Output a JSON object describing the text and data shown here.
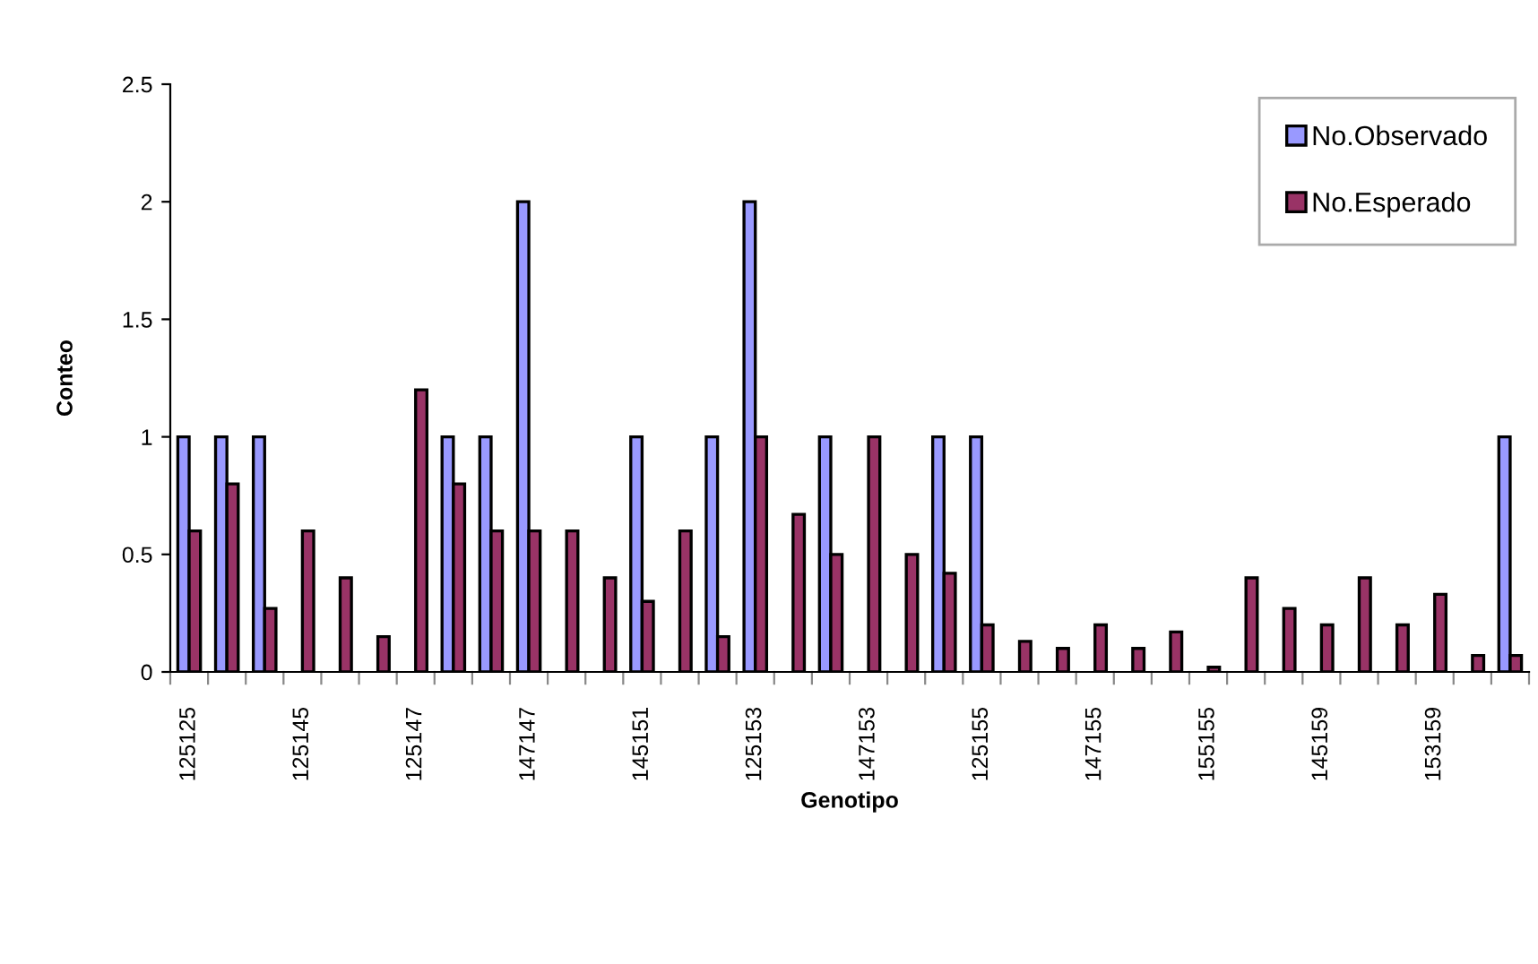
{
  "chart_data": {
    "type": "bar",
    "xlabel": "Genotipo",
    "ylabel": "Conteo",
    "categories": [
      "125125",
      null,
      null,
      "125145",
      null,
      null,
      "125147",
      null,
      null,
      "147147",
      null,
      null,
      "145151",
      null,
      null,
      "125153",
      null,
      null,
      "147153",
      null,
      null,
      "125155",
      null,
      null,
      "147155",
      null,
      null,
      "155155",
      null,
      null,
      "145159",
      null,
      null,
      "153159",
      null,
      null
    ],
    "series": [
      {
        "name": "No.Observado",
        "color": "#9999ff",
        "values": [
          1,
          1,
          1,
          0,
          0,
          0,
          0,
          1,
          1,
          2,
          0,
          0,
          1,
          0,
          1,
          2,
          0,
          1,
          0,
          0,
          1,
          1,
          0,
          0,
          0,
          0,
          0,
          0,
          0,
          0,
          0,
          0,
          0,
          0,
          0,
          1
        ]
      },
      {
        "name": "No.Esperado",
        "color": "#993366",
        "values": [
          0.6,
          0.8,
          0.27,
          0.6,
          0.4,
          0.15,
          1.2,
          0.8,
          0.6,
          0.6,
          0.6,
          0.4,
          0.3,
          0.6,
          0.15,
          1,
          0.67,
          0.5,
          1,
          0.5,
          0.42,
          0.2,
          0.13,
          0.1,
          0.2,
          0.1,
          0.17,
          0.02,
          0.4,
          0.27,
          0.2,
          0.4,
          0.2,
          0.33,
          0.07,
          0.07
        ]
      }
    ],
    "ylim": [
      0,
      2.5
    ],
    "yticks": [
      0,
      0.5,
      1,
      1.5,
      2,
      2.5
    ],
    "grid": false,
    "legend": "top right"
  }
}
